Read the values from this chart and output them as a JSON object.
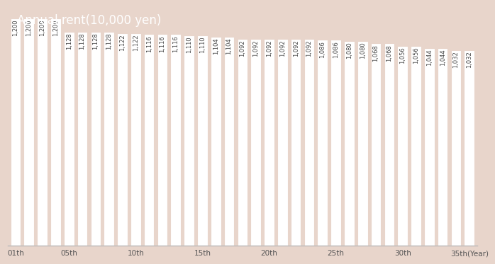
{
  "values": [
    1200,
    1200,
    1200,
    1200,
    1128,
    1128,
    1128,
    1128,
    1122,
    1122,
    1116,
    1116,
    1116,
    1110,
    1110,
    1104,
    1104,
    1092,
    1092,
    1092,
    1092,
    1092,
    1092,
    1086,
    1086,
    1080,
    1080,
    1068,
    1068,
    1056,
    1056,
    1044,
    1044,
    1032,
    1032
  ],
  "x_tick_positions": [
    0,
    4,
    9,
    14,
    19,
    24,
    29,
    34
  ],
  "x_tick_labels": [
    "01th",
    "05th",
    "10th",
    "15th",
    "20th",
    "25th",
    "30th",
    "35th(Year)"
  ],
  "title": "Annual rent(10,000 yen)",
  "background_color": "#e8d5cb",
  "bar_color": "#ffffff",
  "bar_edge_color": "#e8d5cb",
  "label_color": "#444444",
  "title_color": "#ffffff",
  "title_fontsize": 12,
  "label_fontsize": 6.0,
  "bar_width": 0.78,
  "ylim_min": 900,
  "ylim_max": 1260
}
